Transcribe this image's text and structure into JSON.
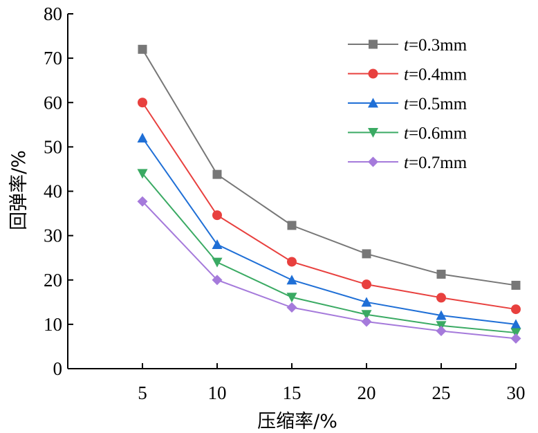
{
  "chart_data": {
    "type": "line",
    "xlabel": "压缩率/%",
    "ylabel": "回弹率/%",
    "x": [
      5,
      10,
      15,
      20,
      25,
      30
    ],
    "xlim": [
      0,
      30
    ],
    "ylim": [
      0,
      80
    ],
    "xticks": [
      "5",
      "10",
      "15",
      "20",
      "25",
      "30"
    ],
    "yticks": [
      "0",
      "10",
      "20",
      "30",
      "40",
      "50",
      "60",
      "70",
      "80"
    ],
    "grid": false,
    "legend_position": "top-right",
    "series": [
      {
        "name": "t=0.3mm",
        "name_var": "t",
        "name_rest": "=0.3mm",
        "marker": "square",
        "color": "#777777",
        "values": [
          72,
          43.8,
          32.3,
          25.9,
          21.3,
          18.8
        ]
      },
      {
        "name": "t=0.4mm",
        "name_var": "t",
        "name_rest": "=0.4mm",
        "marker": "circle",
        "color": "#e8403e",
        "values": [
          60,
          34.6,
          24.1,
          19,
          16,
          13.4
        ]
      },
      {
        "name": "t=0.5mm",
        "name_var": "t",
        "name_rest": "=0.5mm",
        "marker": "triangle-up",
        "color": "#1f6fd6",
        "values": [
          52,
          28,
          20,
          15,
          12,
          10
        ]
      },
      {
        "name": "t=0.6mm",
        "name_var": "t",
        "name_rest": "=0.6mm",
        "marker": "triangle-down",
        "color": "#3aaa63",
        "values": [
          44,
          24,
          16.1,
          12.2,
          9.7,
          8.1
        ]
      },
      {
        "name": "t=0.7mm",
        "name_var": "t",
        "name_rest": "=0.7mm",
        "marker": "diamond",
        "color": "#a57adb",
        "values": [
          37.7,
          20,
          13.8,
          10.6,
          8.5,
          6.8
        ]
      }
    ]
  }
}
